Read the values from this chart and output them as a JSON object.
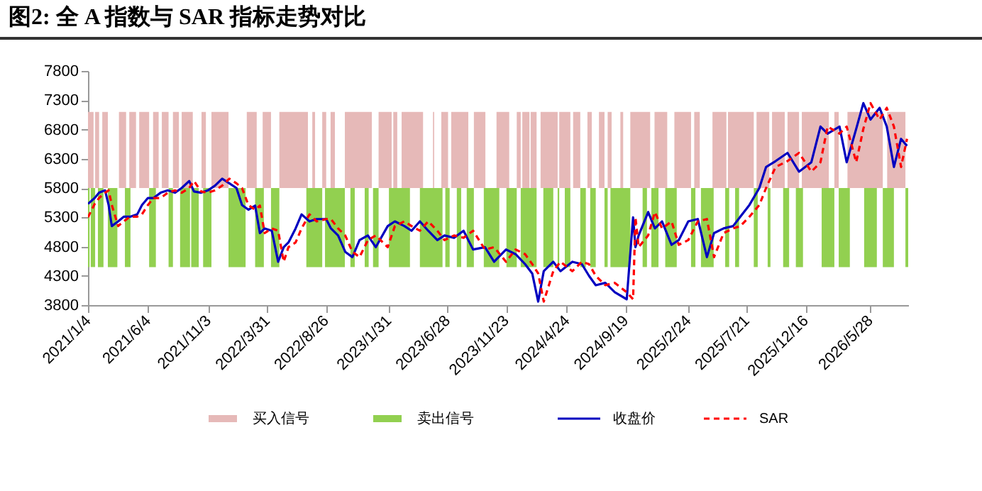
{
  "chart_data": {
    "type": "line",
    "title": "图2: 全 A 指数与 SAR 指标走势对比",
    "xlim": [
      "2021-01-04",
      "2026-09-01"
    ],
    "xticks": [
      {
        "value": "2021-01-04",
        "label": "2021/1/4"
      },
      {
        "value": "2021-06-04",
        "label": "2021/6/4"
      },
      {
        "value": "2021-11-03",
        "label": "2021/11/3"
      },
      {
        "value": "2022-03-31",
        "label": "2022/3/31"
      },
      {
        "value": "2022-08-26",
        "label": "2022/8/26"
      },
      {
        "value": "2023-01-31",
        "label": "2023/1/31"
      },
      {
        "value": "2023-06-28",
        "label": "2023/6/28"
      },
      {
        "value": "2023-11-23",
        "label": "2023/11/23"
      },
      {
        "value": "2024-04-24",
        "label": "2024/4/24"
      },
      {
        "value": "2024-09-19",
        "label": "2024/9/19"
      },
      {
        "value": "2025-02-24",
        "label": "2025/2/24"
      },
      {
        "value": "2025-07-21",
        "label": "2025/7/21"
      },
      {
        "value": "2025-12-16",
        "label": "2025/12/16"
      },
      {
        "value": "2026-05-28",
        "label": "2026/5/28"
      }
    ],
    "ylim": [
      3800,
      7800
    ],
    "yticks": [
      3800,
      4300,
      4800,
      5300,
      5800,
      6300,
      6800,
      7300,
      7800
    ],
    "grid": false,
    "legend": "bottom",
    "x": [
      "2021-01-04",
      "2021-01-21",
      "2021-02-01",
      "2021-02-16",
      "2021-02-25",
      "2021-03-05",
      "2021-03-21",
      "2021-04-04",
      "2021-04-20",
      "2021-05-08",
      "2021-05-20",
      "2021-06-04",
      "2021-06-18",
      "2021-07-06",
      "2021-07-24",
      "2021-08-11",
      "2021-08-28",
      "2021-09-16",
      "2021-09-28",
      "2021-10-16",
      "2021-11-02",
      "2021-11-20",
      "2021-12-08",
      "2021-12-26",
      "2022-01-13",
      "2022-01-27",
      "2022-02-12",
      "2022-03-01",
      "2022-03-13",
      "2022-03-25",
      "2022-04-12",
      "2022-04-28",
      "2022-05-12",
      "2022-05-24",
      "2022-06-11",
      "2022-06-26",
      "2022-07-16",
      "2022-08-03",
      "2022-08-27",
      "2022-09-08",
      "2022-09-26",
      "2022-10-14",
      "2022-11-01",
      "2022-11-19",
      "2022-12-10",
      "2022-12-30",
      "2023-01-29",
      "2023-02-16",
      "2023-03-12",
      "2023-03-30",
      "2023-04-20",
      "2023-05-11",
      "2023-06-03",
      "2023-06-21",
      "2023-07-15",
      "2023-08-08",
      "2023-09-01",
      "2023-10-01",
      "2023-10-24",
      "2023-11-23",
      "2023-12-17",
      "2024-01-10",
      "2024-01-28",
      "2024-02-12",
      "2024-02-26",
      "2024-03-21",
      "2024-04-08",
      "2024-05-08",
      "2024-06-01",
      "2024-06-19",
      "2024-07-06",
      "2024-07-30",
      "2024-08-23",
      "2024-09-22",
      "2024-10-08",
      "2024-10-14",
      "2024-10-22",
      "2024-11-15",
      "2024-12-02",
      "2024-12-20",
      "2025-01-13",
      "2025-01-31",
      "2025-02-24",
      "2025-03-20",
      "2025-04-12",
      "2025-04-30",
      "2025-05-24",
      "2025-06-17",
      "2025-07-05",
      "2025-07-28",
      "2025-08-22",
      "2025-09-08",
      "2025-10-02",
      "2025-11-01",
      "2025-11-30",
      "2025-12-31",
      "2026-01-23",
      "2026-02-10",
      "2026-03-12",
      "2026-03-30",
      "2026-04-23",
      "2026-05-11",
      "2026-05-29",
      "2026-06-21",
      "2026-07-09",
      "2026-07-27",
      "2026-08-14",
      "2026-08-29"
    ],
    "series": [
      {
        "name": "收盘价",
        "color": "#0000c0",
        "line_style": "solid",
        "values": [
          5530,
          5630,
          5720,
          5760,
          5510,
          5150,
          5230,
          5310,
          5310,
          5350,
          5510,
          5630,
          5630,
          5720,
          5760,
          5720,
          5800,
          5920,
          5740,
          5720,
          5760,
          5840,
          5960,
          5880,
          5800,
          5510,
          5430,
          5500,
          5030,
          5110,
          5070,
          4540,
          4790,
          4870,
          5110,
          5350,
          5230,
          5270,
          5270,
          5110,
          4990,
          4710,
          4620,
          4910,
          4990,
          4790,
          5150,
          5230,
          5150,
          5070,
          5230,
          5070,
          4910,
          4990,
          4950,
          5070,
          4750,
          4790,
          4540,
          4750,
          4670,
          4500,
          4340,
          3860,
          4380,
          4540,
          4380,
          4540,
          4500,
          4300,
          4140,
          4180,
          4020,
          3900,
          5300,
          4790,
          4990,
          5390,
          5110,
          5230,
          4830,
          4910,
          5230,
          5270,
          4620,
          5030,
          5110,
          5150,
          5310,
          5510,
          5800,
          6160,
          6260,
          6400,
          6080,
          6240,
          6850,
          6730,
          6850,
          6240,
          6810,
          7250,
          6970,
          7170,
          6850,
          6160,
          6640,
          6520
        ]
      },
      {
        "name": "SAR",
        "color": "#ff0000",
        "line_style": "dashed",
        "values": [
          5300,
          5530,
          5630,
          5720,
          5760,
          5510,
          5150,
          5230,
          5310,
          5310,
          5350,
          5510,
          5630,
          5630,
          5720,
          5760,
          5720,
          5800,
          5920,
          5740,
          5720,
          5760,
          5840,
          5960,
          5880,
          5800,
          5510,
          5430,
          5500,
          5030,
          5110,
          5070,
          4540,
          4790,
          4870,
          5110,
          5350,
          5230,
          5270,
          5270,
          5110,
          4990,
          4710,
          4620,
          4910,
          4990,
          4790,
          5150,
          5230,
          5150,
          5070,
          5230,
          5070,
          4910,
          4990,
          4950,
          5070,
          4750,
          4790,
          4540,
          4750,
          4670,
          4500,
          4340,
          3860,
          4380,
          4540,
          4380,
          4540,
          4500,
          4300,
          4140,
          4180,
          4020,
          3900,
          5300,
          4790,
          4990,
          5390,
          5110,
          5230,
          4830,
          4910,
          5230,
          5270,
          4620,
          5030,
          5110,
          5150,
          5310,
          5510,
          5800,
          6160,
          6260,
          6400,
          6080,
          6240,
          6850,
          6730,
          6850,
          6240,
          6810,
          7250,
          6970,
          7170,
          6850,
          6160,
          6640
        ]
      }
    ],
    "bands": [
      {
        "axis": "x",
        "from": "2021-01-04",
        "to": "2021-01-18",
        "color": "#e6b9b8",
        "label": "买入信号"
      },
      {
        "axis": "x",
        "from": "2021-01-22",
        "to": "2021-02-01",
        "color": "#e6b9b8"
      },
      {
        "axis": "x",
        "from": "2021-02-09",
        "to": "2021-02-23",
        "color": "#e6b9b8"
      },
      {
        "axis": "x",
        "from": "2021-03-23",
        "to": "2021-04-10",
        "color": "#e6b9b8"
      },
      {
        "axis": "x",
        "from": "2021-04-18",
        "to": "2021-05-05",
        "color": "#e6b9b8"
      },
      {
        "axis": "x",
        "from": "2021-05-13",
        "to": "2021-06-07",
        "color": "#e6b9b8"
      },
      {
        "axis": "x",
        "from": "2021-06-17",
        "to": "2021-07-01",
        "color": "#e6b9b8"
      },
      {
        "axis": "x",
        "from": "2021-07-09",
        "to": "2021-07-26",
        "color": "#e6b9b8"
      },
      {
        "axis": "x",
        "from": "2021-08-06",
        "to": "2021-08-21",
        "color": "#e6b9b8"
      },
      {
        "axis": "x",
        "from": "2021-08-28",
        "to": "2021-09-25",
        "color": "#e6b9b8"
      },
      {
        "axis": "x",
        "from": "2021-10-17",
        "to": "2021-10-28",
        "color": "#e6b9b8"
      },
      {
        "axis": "x",
        "from": "2021-11-11",
        "to": "2021-12-24",
        "color": "#e6b9b8"
      },
      {
        "axis": "x",
        "from": "2022-02-08",
        "to": "2022-03-05",
        "color": "#e6b9b8"
      },
      {
        "axis": "x",
        "from": "2022-03-20",
        "to": "2022-04-10",
        "color": "#e6b9b8"
      },
      {
        "axis": "x",
        "from": "2022-05-01",
        "to": "2022-07-12",
        "color": "#e6b9b8"
      },
      {
        "axis": "x",
        "from": "2022-07-23",
        "to": "2022-07-30",
        "color": "#e6b9b8"
      },
      {
        "axis": "x",
        "from": "2022-08-17",
        "to": "2022-08-27",
        "color": "#e6b9b8"
      },
      {
        "axis": "x",
        "from": "2022-09-07",
        "to": "2022-09-18",
        "color": "#e6b9b8"
      },
      {
        "axis": "x",
        "from": "2022-10-13",
        "to": "2022-12-20",
        "color": "#e6b9b8"
      },
      {
        "axis": "x",
        "from": "2023-01-06",
        "to": "2023-02-08",
        "color": "#e6b9b8"
      },
      {
        "axis": "x",
        "from": "2023-02-12",
        "to": "2023-02-22",
        "color": "#e6b9b8"
      },
      {
        "axis": "x",
        "from": "2023-03-05",
        "to": "2023-04-28",
        "color": "#e6b9b8"
      },
      {
        "axis": "x",
        "from": "2023-05-23",
        "to": "2023-05-26",
        "color": "#e6b9b8"
      },
      {
        "axis": "x",
        "from": "2023-06-13",
        "to": "2023-06-30",
        "color": "#e6b9b8"
      },
      {
        "axis": "x",
        "from": "2023-07-08",
        "to": "2023-08-20",
        "color": "#e6b9b8"
      },
      {
        "axis": "x",
        "from": "2023-09-03",
        "to": "2023-10-02",
        "color": "#e6b9b8"
      },
      {
        "axis": "x",
        "from": "2023-10-30",
        "to": "2023-12-01",
        "color": "#e6b9b8"
      },
      {
        "axis": "x",
        "from": "2023-12-20",
        "to": "2023-12-30",
        "color": "#e6b9b8"
      },
      {
        "axis": "x",
        "from": "2024-01-03",
        "to": "2024-01-21",
        "color": "#e6b9b8"
      },
      {
        "axis": "x",
        "from": "2024-01-24",
        "to": "2024-02-08",
        "color": "#e6b9b8"
      },
      {
        "axis": "x",
        "from": "2024-02-18",
        "to": "2024-04-01",
        "color": "#e6b9b8"
      },
      {
        "axis": "x",
        "from": "2024-04-05",
        "to": "2024-05-03",
        "color": "#e6b9b8"
      },
      {
        "axis": "x",
        "from": "2024-05-10",
        "to": "2024-05-28",
        "color": "#e6b9b8"
      },
      {
        "axis": "x",
        "from": "2024-06-15",
        "to": "2024-06-26",
        "color": "#e6b9b8"
      },
      {
        "axis": "x",
        "from": "2024-07-14",
        "to": "2024-07-28",
        "color": "#e6b9b8"
      },
      {
        "axis": "x",
        "from": "2024-08-05",
        "to": "2024-08-15",
        "color": "#e6b9b8"
      },
      {
        "axis": "x",
        "from": "2024-09-06",
        "to": "2024-09-13",
        "color": "#e6b9b8"
      },
      {
        "axis": "x",
        "from": "2024-10-01",
        "to": "2024-11-20",
        "color": "#e6b9b8"
      },
      {
        "axis": "x",
        "from": "2024-12-01",
        "to": "2025-01-02",
        "color": "#e6b9b8"
      },
      {
        "axis": "x",
        "from": "2025-01-20",
        "to": "2025-03-03",
        "color": "#e6b9b8"
      },
      {
        "axis": "x",
        "from": "2025-03-11",
        "to": "2025-03-25",
        "color": "#e6b9b8"
      },
      {
        "axis": "x",
        "from": "2025-04-26",
        "to": "2025-05-31",
        "color": "#e6b9b8"
      },
      {
        "axis": "x",
        "from": "2025-06-04",
        "to": "2025-08-08",
        "color": "#e6b9b8"
      },
      {
        "axis": "x",
        "from": "2025-08-15",
        "to": "2025-09-16",
        "color": "#e6b9b8"
      },
      {
        "axis": "x",
        "from": "2025-09-23",
        "to": "2025-10-25",
        "color": "#e6b9b8"
      },
      {
        "axis": "x",
        "from": "2025-11-01",
        "to": "2025-11-30",
        "color": "#e6b9b8"
      },
      {
        "axis": "x",
        "from": "2025-12-07",
        "to": "2026-02-13",
        "color": "#e6b9b8"
      },
      {
        "axis": "x",
        "from": "2026-02-27",
        "to": "2026-03-10",
        "color": "#e6b9b8"
      },
      {
        "axis": "x",
        "from": "2026-04-01",
        "to": "2026-06-29",
        "color": "#e6b9b8"
      },
      {
        "axis": "x",
        "from": "2026-07-10",
        "to": "2026-08-25",
        "color": "#e6b9b8"
      },
      {
        "axis": "x",
        "from": "2021-01-04",
        "to": "2021-01-08",
        "color": "#92d050",
        "label": "卖出信号"
      },
      {
        "axis": "x",
        "from": "2021-01-11",
        "to": "2021-01-22",
        "color": "#92d050"
      },
      {
        "axis": "x",
        "from": "2021-01-29",
        "to": "2021-02-12",
        "color": "#92d050"
      },
      {
        "axis": "x",
        "from": "2021-02-23",
        "to": "2021-03-19",
        "color": "#92d050"
      },
      {
        "axis": "x",
        "from": "2021-04-07",
        "to": "2021-04-21",
        "color": "#92d050"
      },
      {
        "axis": "x",
        "from": "2021-06-07",
        "to": "2021-06-24",
        "color": "#92d050"
      },
      {
        "axis": "x",
        "from": "2021-07-26",
        "to": "2021-08-06",
        "color": "#92d050"
      },
      {
        "axis": "x",
        "from": "2021-08-24",
        "to": "2021-09-18",
        "color": "#92d050"
      },
      {
        "axis": "x",
        "from": "2021-09-21",
        "to": "2021-10-10",
        "color": "#92d050"
      },
      {
        "axis": "x",
        "from": "2021-10-21",
        "to": "2021-11-11",
        "color": "#92d050"
      },
      {
        "axis": "x",
        "from": "2021-12-24",
        "to": "2022-02-05",
        "color": "#92d050"
      },
      {
        "axis": "x",
        "from": "2022-03-01",
        "to": "2022-03-23",
        "color": "#92d050"
      },
      {
        "axis": "x",
        "from": "2022-04-10",
        "to": "2022-05-01",
        "color": "#92d050"
      },
      {
        "axis": "x",
        "from": "2022-07-08",
        "to": "2022-08-17",
        "color": "#92d050"
      },
      {
        "axis": "x",
        "from": "2022-08-24",
        "to": "2022-10-13",
        "color": "#92d050"
      },
      {
        "axis": "x",
        "from": "2022-10-27",
        "to": "2022-11-07",
        "color": "#92d050"
      },
      {
        "axis": "x",
        "from": "2022-12-02",
        "to": "2022-12-12",
        "color": "#92d050"
      },
      {
        "axis": "x",
        "from": "2022-12-23",
        "to": "2023-01-06",
        "color": "#92d050"
      },
      {
        "axis": "x",
        "from": "2023-02-01",
        "to": "2023-03-26",
        "color": "#92d050"
      },
      {
        "axis": "x",
        "from": "2023-04-20",
        "to": "2023-06-16",
        "color": "#92d050"
      },
      {
        "axis": "x",
        "from": "2023-06-23",
        "to": "2023-07-04",
        "color": "#92d050"
      },
      {
        "axis": "x",
        "from": "2023-07-22",
        "to": "2023-08-02",
        "color": "#92d050"
      },
      {
        "axis": "x",
        "from": "2023-08-16",
        "to": "2023-09-03",
        "color": "#92d050"
      },
      {
        "axis": "x",
        "from": "2023-09-28",
        "to": "2023-11-06",
        "color": "#92d050"
      },
      {
        "axis": "x",
        "from": "2023-11-24",
        "to": "2023-12-20",
        "color": "#92d050"
      },
      {
        "axis": "x",
        "from": "2023-12-30",
        "to": "2024-02-08",
        "color": "#92d050"
      },
      {
        "axis": "x",
        "from": "2024-02-25",
        "to": "2024-03-21",
        "color": "#92d050"
      },
      {
        "axis": "x",
        "from": "2024-04-01",
        "to": "2024-04-05",
        "color": "#92d050"
      },
      {
        "axis": "x",
        "from": "2024-04-19",
        "to": "2024-05-03",
        "color": "#92d050"
      },
      {
        "axis": "x",
        "from": "2024-05-28",
        "to": "2024-06-11",
        "color": "#92d050"
      },
      {
        "axis": "x",
        "from": "2024-06-22",
        "to": "2024-07-06",
        "color": "#92d050"
      },
      {
        "axis": "x",
        "from": "2024-07-28",
        "to": "2024-08-05",
        "color": "#92d050"
      },
      {
        "axis": "x",
        "from": "2024-08-12",
        "to": "2024-10-01",
        "color": "#92d050"
      },
      {
        "axis": "x",
        "from": "2024-11-01",
        "to": "2024-11-12",
        "color": "#92d050"
      },
      {
        "axis": "x",
        "from": "2024-11-23",
        "to": "2024-12-11",
        "color": "#92d050"
      },
      {
        "axis": "x",
        "from": "2024-12-28",
        "to": "2025-01-26",
        "color": "#92d050"
      },
      {
        "axis": "x",
        "from": "2025-03-03",
        "to": "2025-03-14",
        "color": "#92d050"
      },
      {
        "axis": "x",
        "from": "2025-03-28",
        "to": "2025-04-29",
        "color": "#92d050"
      },
      {
        "axis": "x",
        "from": "2025-05-28",
        "to": "2025-06-07",
        "color": "#92d050"
      },
      {
        "axis": "x",
        "from": "2025-06-22",
        "to": "2025-07-02",
        "color": "#92d050"
      },
      {
        "axis": "x",
        "from": "2025-08-08",
        "to": "2025-08-18",
        "color": "#92d050"
      },
      {
        "axis": "x",
        "from": "2025-09-12",
        "to": "2025-09-19",
        "color": "#92d050"
      },
      {
        "axis": "x",
        "from": "2025-10-21",
        "to": "2025-11-05",
        "color": "#92d050"
      },
      {
        "axis": "x",
        "from": "2025-11-22",
        "to": "2025-12-10",
        "color": "#92d050"
      },
      {
        "axis": "x",
        "from": "2026-01-26",
        "to": "2026-02-27",
        "color": "#92d050"
      },
      {
        "axis": "x",
        "from": "2026-03-10",
        "to": "2026-04-07",
        "color": "#92d050"
      },
      {
        "axis": "x",
        "from": "2026-05-13",
        "to": "2026-06-14",
        "color": "#92d050"
      },
      {
        "axis": "x",
        "from": "2026-06-29",
        "to": "2026-07-27",
        "color": "#92d050"
      },
      {
        "axis": "x",
        "from": "2026-08-25",
        "to": "2026-09-01",
        "color": "#92d050"
      }
    ]
  }
}
